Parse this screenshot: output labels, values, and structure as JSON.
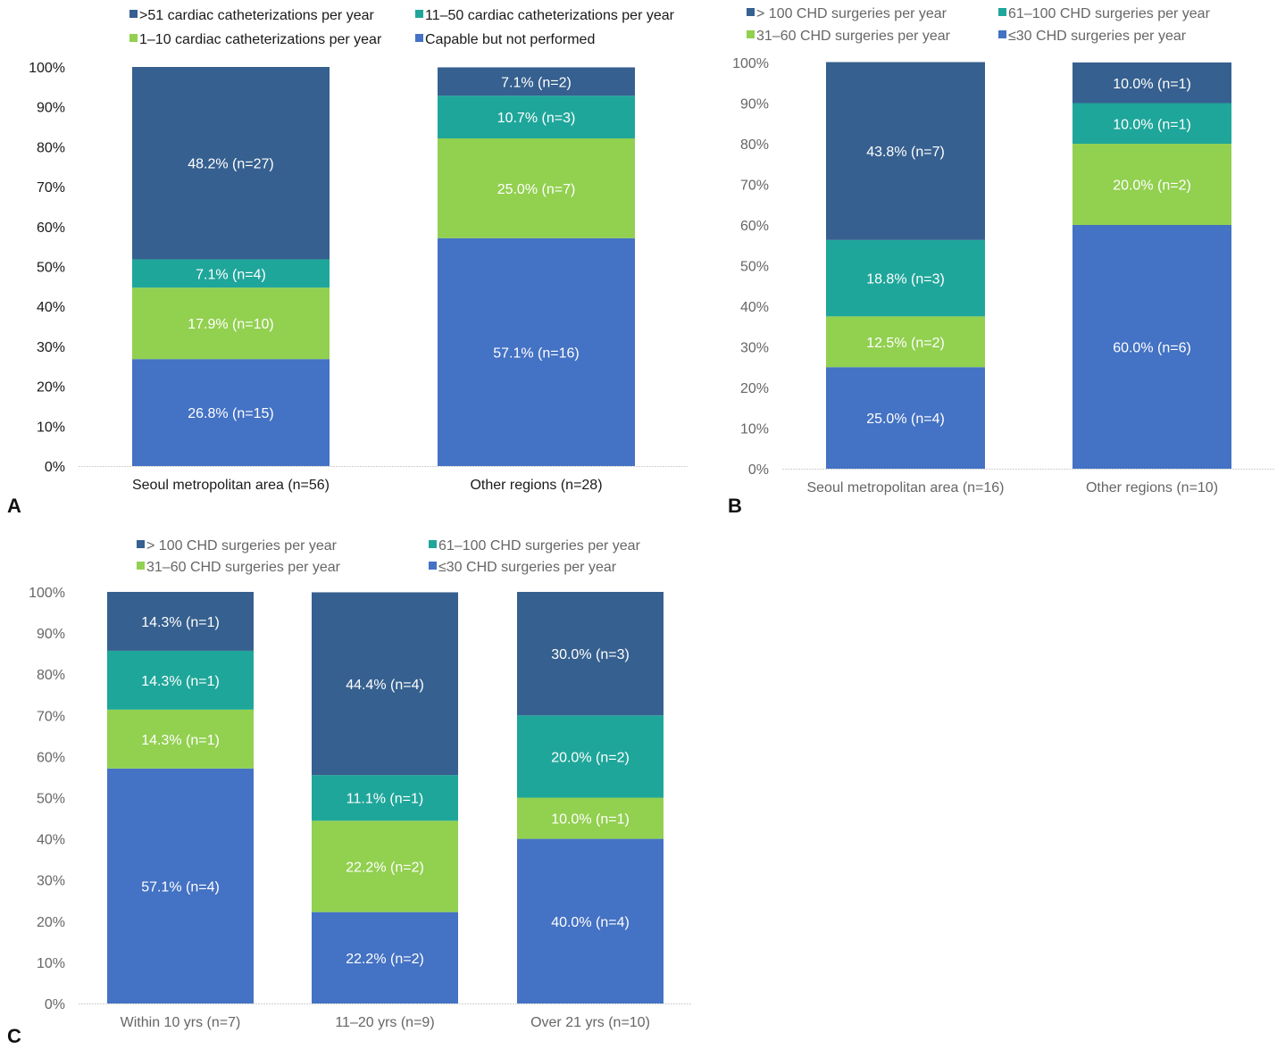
{
  "chart_data": [
    {
      "panel": "A",
      "type": "bar",
      "stacked": true,
      "title": "",
      "xlabel": "",
      "ylabel": "",
      "ylim": [
        0,
        100
      ],
      "yticks": [
        "0%",
        "10%",
        "20%",
        "30%",
        "40%",
        "50%",
        "60%",
        "70%",
        "80%",
        "90%",
        "100%"
      ],
      "grid": false,
      "legend_position": "top",
      "categories": [
        "Seoul metropolitan area (n=56)",
        "Other regions (n=28)"
      ],
      "series": [
        {
          "name": "Capable but not performed",
          "color": "#4472c4",
          "values": [
            26.8,
            57.1
          ],
          "labels": [
            "26.8% (n=15)",
            "57.1% (n=16)"
          ]
        },
        {
          "name": "1–10 cardiac catheterizations per year",
          "color": "#92d050",
          "values": [
            17.9,
            25.0
          ],
          "labels": [
            "17.9% (n=10)",
            "25.0% (n=7)"
          ]
        },
        {
          "name": "11–50 cardiac catheterizations per year",
          "color": "#1fa69a",
          "values": [
            7.1,
            10.7
          ],
          "labels": [
            "7.1% (n=4)",
            "10.7% (n=3)"
          ]
        },
        {
          "name": ">51 cardiac catheterizations per year",
          "color": "#36608f",
          "values": [
            48.2,
            7.1
          ],
          "labels": [
            "48.2% (n=27)",
            "7.1% (n=2)"
          ]
        }
      ],
      "legend_order": [
        3,
        2,
        1,
        0
      ]
    },
    {
      "panel": "B",
      "type": "bar",
      "stacked": true,
      "title": "",
      "xlabel": "",
      "ylabel": "",
      "ylim": [
        0,
        100
      ],
      "yticks": [
        "0%",
        "10%",
        "20%",
        "30%",
        "40%",
        "50%",
        "60%",
        "70%",
        "80%",
        "90%",
        "100%"
      ],
      "grid": false,
      "legend_position": "top",
      "categories": [
        "Seoul metropolitan area (n=16)",
        "Other regions (n=10)"
      ],
      "series": [
        {
          "name": "≤30 CHD surgeries per year",
          "color": "#4472c4",
          "values": [
            25.0,
            60.0
          ],
          "labels": [
            "25.0% (n=4)",
            "60.0% (n=6)"
          ]
        },
        {
          "name": "31–60 CHD surgeries per year",
          "color": "#92d050",
          "values": [
            12.5,
            20.0
          ],
          "labels": [
            "12.5% (n=2)",
            "20.0% (n=2)"
          ]
        },
        {
          "name": "61–100 CHD surgeries per year",
          "color": "#1fa69a",
          "values": [
            18.8,
            10.0
          ],
          "labels": [
            "18.8% (n=3)",
            "10.0% (n=1)"
          ]
        },
        {
          "name": "> 100 CHD surgeries per year",
          "color": "#36608f",
          "values": [
            43.8,
            10.0
          ],
          "labels": [
            "43.8% (n=7)",
            "10.0% (n=1)"
          ]
        }
      ],
      "legend_order": [
        3,
        2,
        1,
        0
      ]
    },
    {
      "panel": "C",
      "type": "bar",
      "stacked": true,
      "title": "",
      "xlabel": "",
      "ylabel": "",
      "ylim": [
        0,
        100
      ],
      "yticks": [
        "0%",
        "10%",
        "20%",
        "30%",
        "40%",
        "50%",
        "60%",
        "70%",
        "80%",
        "90%",
        "100%"
      ],
      "grid": false,
      "legend_position": "top",
      "categories": [
        "Within 10 yrs (n=7)",
        "11–20 yrs (n=9)",
        "Over 21 yrs (n=10)"
      ],
      "series": [
        {
          "name": "≤30 CHD surgeries per year",
          "color": "#4472c4",
          "values": [
            57.1,
            22.2,
            40.0
          ],
          "labels": [
            "57.1% (n=4)",
            "22.2% (n=2)",
            "40.0% (n=4)"
          ]
        },
        {
          "name": "31–60 CHD surgeries per year",
          "color": "#92d050",
          "values": [
            14.3,
            22.2,
            10.0
          ],
          "labels": [
            "14.3% (n=1)",
            "22.2% (n=2)",
            "10.0% (n=1)"
          ]
        },
        {
          "name": "61–100 CHD surgeries per year",
          "color": "#1fa69a",
          "values": [
            14.3,
            11.1,
            20.0
          ],
          "labels": [
            "14.3% (n=1)",
            "11.1% (n=1)",
            "20.0% (n=2)"
          ]
        },
        {
          "name": "> 100 CHD surgeries per year",
          "color": "#36608f",
          "values": [
            14.3,
            44.4,
            30.0
          ],
          "labels": [
            "14.3% (n=1)",
            "44.4% (n=4)",
            "30.0% (n=3)"
          ]
        }
      ],
      "legend_order": [
        3,
        2,
        1,
        0
      ]
    }
  ]
}
